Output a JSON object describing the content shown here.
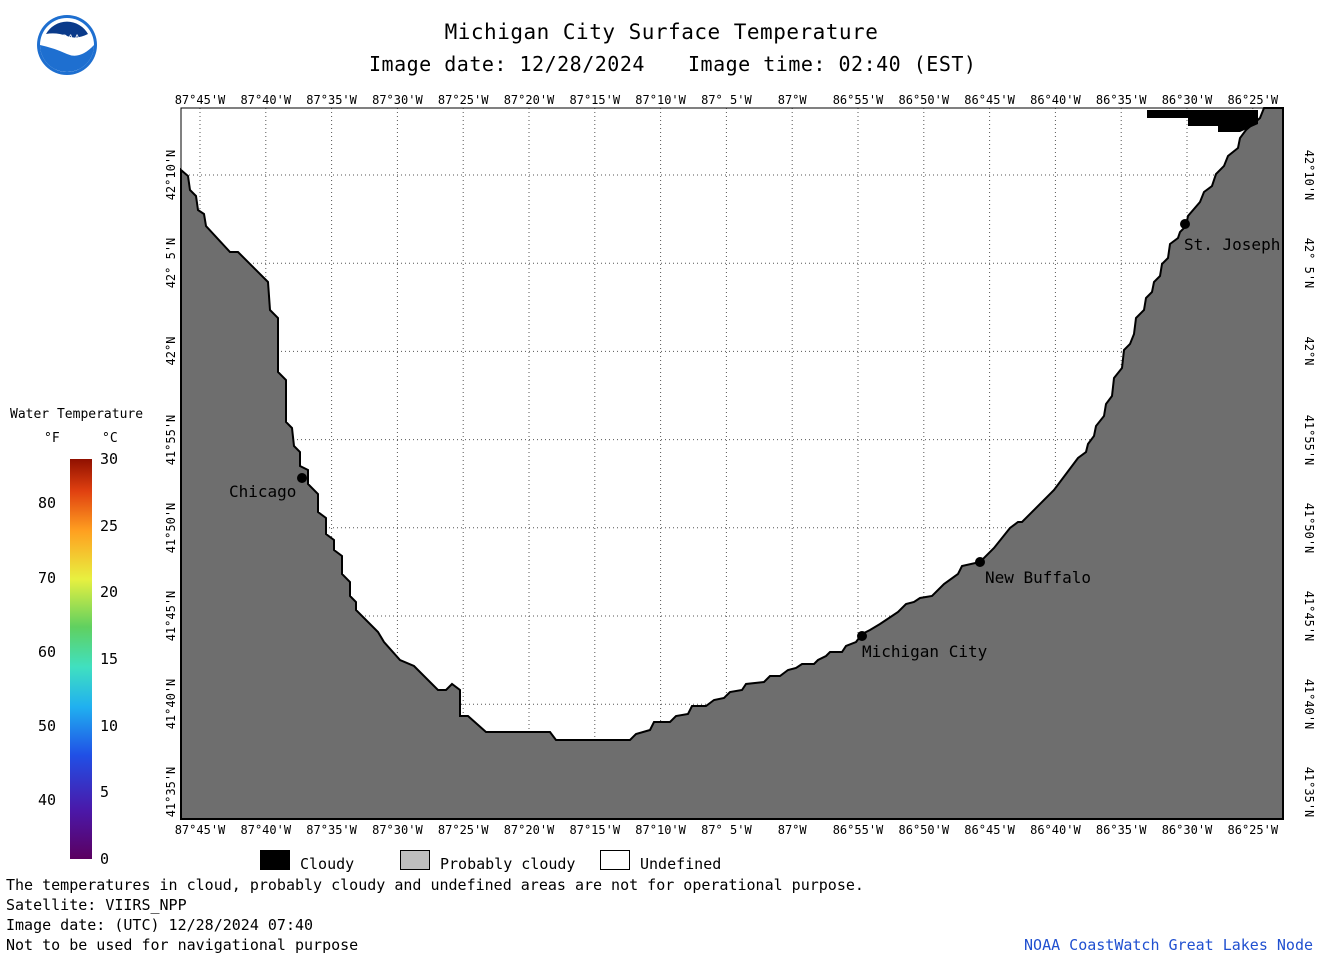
{
  "header": {
    "title": "Michigan City Surface Temperature",
    "image_date_label": "Image date: 12/28/2024",
    "image_time_label": "Image time: 02:40 (EST)"
  },
  "logo": {
    "text": "NOAA",
    "icon": "noaa-logo-icon"
  },
  "map": {
    "lon_labels": [
      "87°45'W",
      "87°40'W",
      "87°35'W",
      "87°30'W",
      "87°25'W",
      "87°20'W",
      "87°15'W",
      "87°10'W",
      "87° 5'W",
      "87°W",
      "86°55'W",
      "86°50'W",
      "86°45'W",
      "86°40'W",
      "86°35'W",
      "86°30'W",
      "86°25'W"
    ],
    "lat_labels": [
      "42°10'N",
      "42° 5'N",
      "42°N",
      "41°55'N",
      "41°50'N",
      "41°45'N",
      "41°40'N",
      "41°35'N"
    ],
    "cities": [
      {
        "name": "Chicago"
      },
      {
        "name": "St. Joseph"
      },
      {
        "name": "New Buffalo"
      },
      {
        "name": "Michigan City"
      }
    ],
    "colors": {
      "land": "#6e6e6e",
      "water_undefined": "#ffffff",
      "cloudy": "#000000",
      "grid": "#555555"
    }
  },
  "legend": {
    "title": "Water Temperature",
    "unit_f": "°F",
    "unit_c": "°C",
    "f_ticks": [
      "40",
      "50",
      "60",
      "70",
      "80"
    ],
    "c_ticks": [
      "0",
      "5",
      "10",
      "15",
      "20",
      "25",
      "30"
    ],
    "categories": [
      {
        "label": "Cloudy",
        "color": "#000000"
      },
      {
        "label": "Probably cloudy",
        "color": "#bebebe"
      },
      {
        "label": "Undefined",
        "color": "#ffffff"
      }
    ]
  },
  "footer": {
    "line1": "The temperatures in cloud, probably cloudy and undefined areas are not for operational purpose.",
    "line2": "Satellite: VIIRS_NPP",
    "line3": "Image date: (UTC) 12/28/2024  07:40",
    "line4": "Not to be used for navigational purpose",
    "credit": "NOAA CoastWatch Great Lakes Node"
  }
}
